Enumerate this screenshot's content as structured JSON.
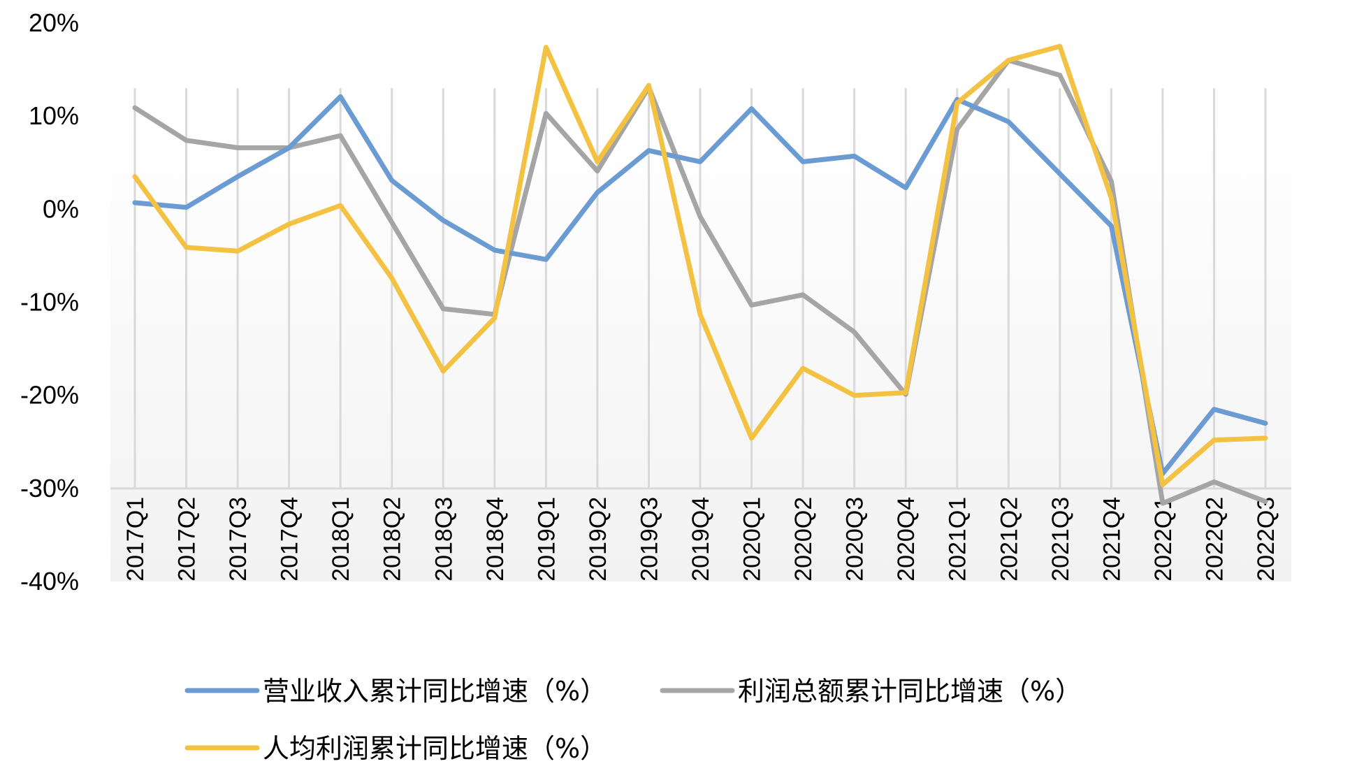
{
  "chart_data": {
    "type": "line",
    "title": "",
    "xlabel": "",
    "ylabel": "",
    "ylim": [
      -40,
      20
    ],
    "yticks": [
      "20%",
      "10%",
      "0%",
      "-10%",
      "-20%",
      "-30%",
      "-40%"
    ],
    "ytick_values": [
      20,
      10,
      0,
      -10,
      -20,
      -30,
      -40
    ],
    "x_axis_crosses_at": -30,
    "grid": "vertical",
    "legend_position": "bottom",
    "categories": [
      "2017Q1",
      "2017Q2",
      "2017Q3",
      "2017Q4",
      "2018Q1",
      "2018Q2",
      "2018Q3",
      "2018Q4",
      "2019Q1",
      "2019Q2",
      "2019Q3",
      "2019Q4",
      "2020Q1",
      "2020Q2",
      "2020Q3",
      "2020Q4",
      "2021Q1",
      "2021Q2",
      "2021Q3",
      "2021Q4",
      "2022Q1",
      "2022Q2",
      "2022Q3"
    ],
    "series": [
      {
        "name": "营业收入累计同比增速（%）",
        "color": "#6a9bd3",
        "values": [
          0.7,
          0.2,
          3.5,
          6.6,
          12.1,
          3.1,
          -1.2,
          -4.4,
          -5.4,
          1.8,
          6.3,
          5.1,
          10.8,
          5.1,
          5.7,
          2.3,
          11.8,
          9.4,
          3.8,
          -1.8,
          -28.4,
          -21.5,
          -23.0
        ]
      },
      {
        "name": "利润总额累计同比增速（%）",
        "color": "#a5a5a5",
        "values": [
          10.9,
          7.4,
          6.6,
          6.6,
          7.9,
          -1.4,
          -10.7,
          -11.3,
          10.3,
          4.1,
          13.1,
          -0.8,
          -10.3,
          -9.2,
          -13.2,
          -19.9,
          8.6,
          16.0,
          14.4,
          3.0,
          -31.6,
          -29.3,
          -31.4
        ]
      },
      {
        "name": "人均利润累计同比增速（%）",
        "color": "#f4c243",
        "values": [
          3.5,
          -4.1,
          -4.5,
          -1.6,
          0.4,
          -7.4,
          -17.4,
          -11.7,
          17.4,
          5.1,
          13.3,
          -11.3,
          -24.6,
          -17.1,
          -20.0,
          -19.7,
          11.4,
          16.0,
          17.5,
          1.2,
          -29.6,
          -24.8,
          -24.6
        ]
      }
    ]
  }
}
